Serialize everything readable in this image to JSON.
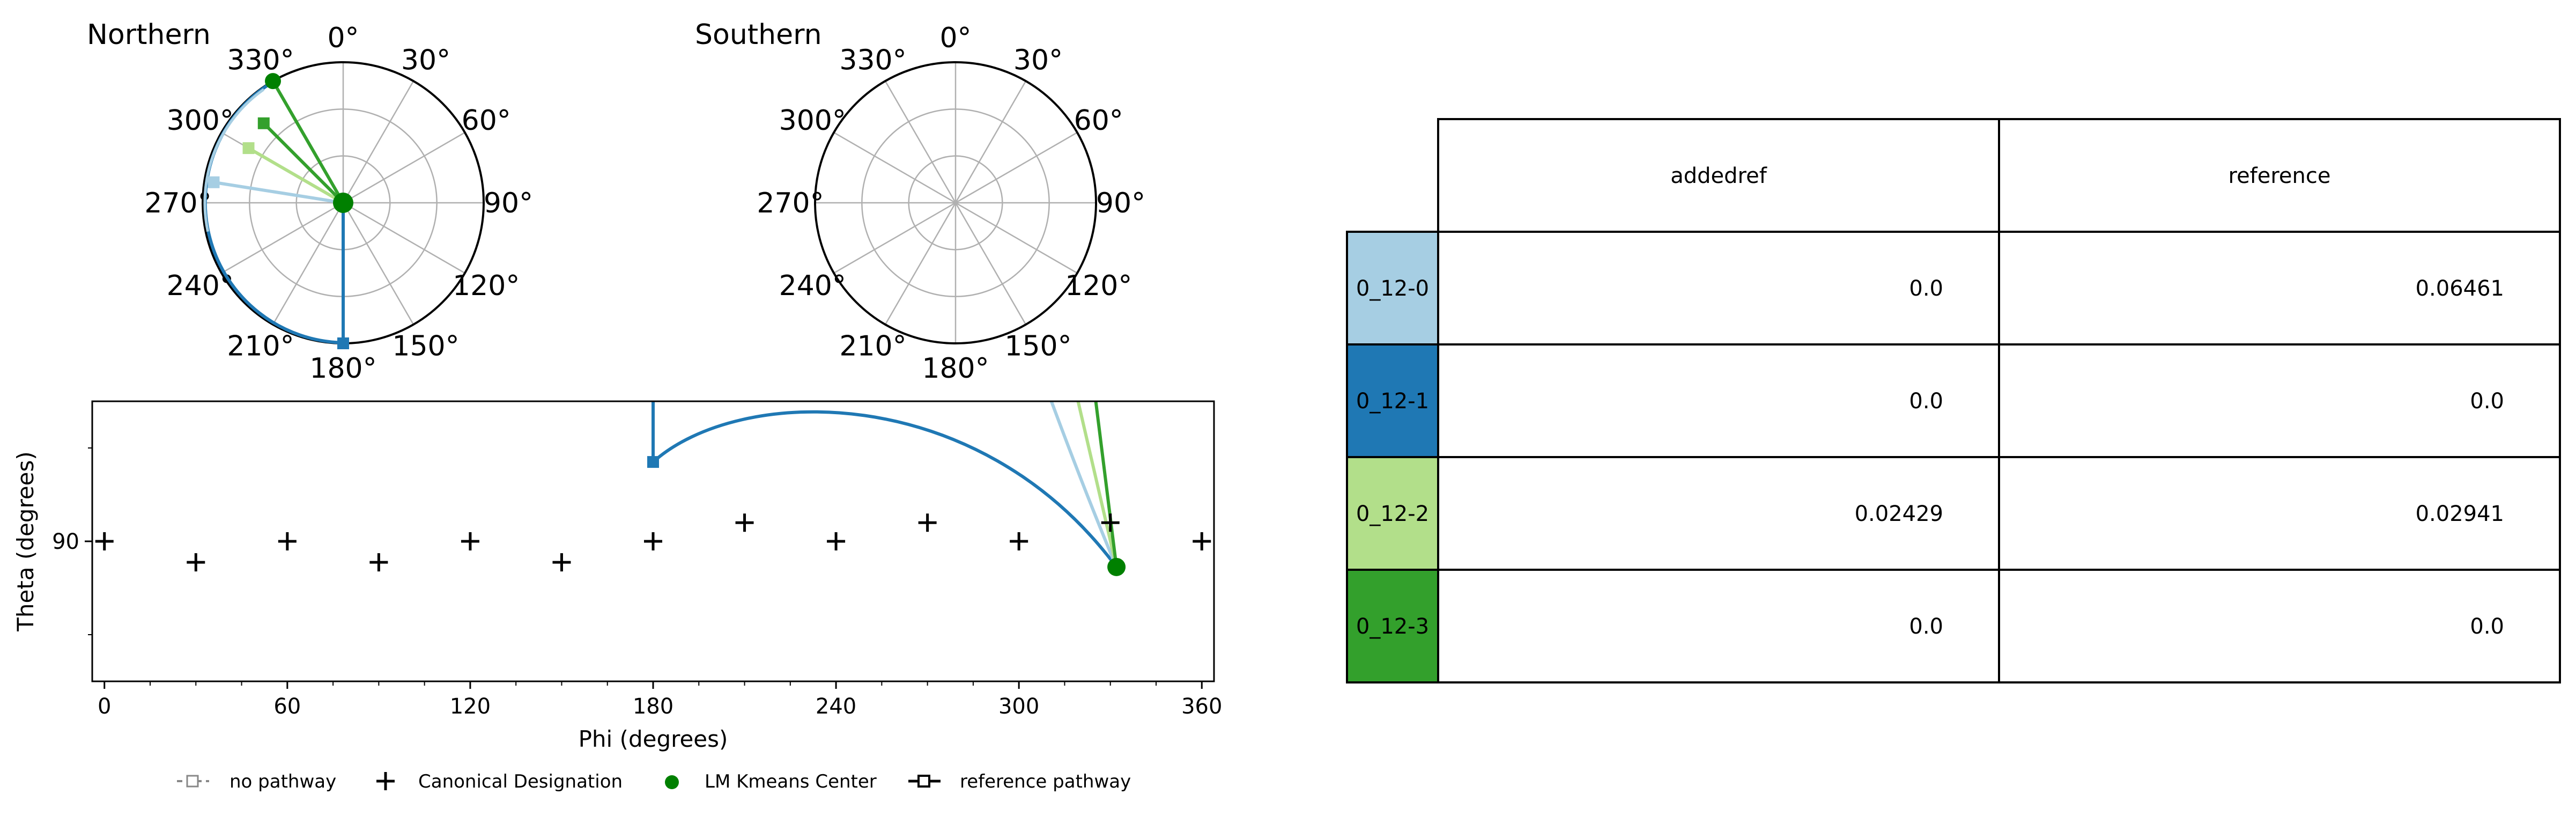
{
  "chart_data": [
    {
      "type": "scatter",
      "projection": "polar",
      "title": "Northern",
      "theta_ticks": [
        "0°",
        "30°",
        "60°",
        "90°",
        "120°",
        "150°",
        "180°",
        "210°",
        "240°",
        "270°",
        "300°",
        "330°"
      ],
      "theta_tick_values": [
        0,
        30,
        60,
        90,
        120,
        150,
        180,
        210,
        240,
        270,
        300,
        330
      ],
      "radial_max": 90,
      "radial_grid": [
        30,
        60,
        90
      ],
      "center_point": {
        "name": "LM Kmeans Center",
        "phi": 0,
        "theta": 0,
        "color": "#008000"
      },
      "pathways": [
        {
          "label": "0_12-0",
          "color": "#a6cee3",
          "phi": 279,
          "theta": 84
        },
        {
          "label": "0_12-1",
          "color": "#1f78b4",
          "phi": 180,
          "theta": 90
        },
        {
          "label": "0_12-2",
          "color": "#b2df8a",
          "phi": 300,
          "theta": 70
        },
        {
          "label": "0_12-3",
          "color": "#33a02c",
          "phi": 315,
          "theta": 72
        }
      ],
      "kmeans_point": {
        "phi": 330,
        "theta": 90
      }
    },
    {
      "type": "scatter",
      "projection": "polar",
      "title": "Southern",
      "theta_ticks": [
        "0°",
        "30°",
        "60°",
        "90°",
        "120°",
        "150°",
        "180°",
        "210°",
        "240°",
        "270°",
        "300°",
        "330°"
      ],
      "theta_tick_values": [
        0,
        30,
        60,
        90,
        120,
        150,
        180,
        210,
        240,
        270,
        300,
        330
      ],
      "radial_max": 90,
      "radial_grid": [
        30,
        60,
        90
      ]
    },
    {
      "type": "scatter",
      "xlabel": "Phi (degrees)",
      "ylabel": "Theta (degrees)",
      "xlim": [
        -4,
        364
      ],
      "ylim": [
        60,
        120
      ],
      "xticks": [
        0,
        60,
        120,
        180,
        240,
        300,
        360
      ],
      "xtick_labels": [
        "0",
        "60",
        "120",
        "180",
        "240",
        "300",
        "360"
      ],
      "yticks": [
        90
      ],
      "ytick_labels": [
        "90"
      ],
      "canonical_designation": [
        {
          "x": 0,
          "y": 90
        },
        {
          "x": 30,
          "y": 85.5
        },
        {
          "x": 60,
          "y": 90
        },
        {
          "x": 90,
          "y": 85.5
        },
        {
          "x": 120,
          "y": 90
        },
        {
          "x": 150,
          "y": 85.5
        },
        {
          "x": 180,
          "y": 90
        },
        {
          "x": 210,
          "y": 94
        },
        {
          "x": 240,
          "y": 90
        },
        {
          "x": 270,
          "y": 94
        },
        {
          "x": 300,
          "y": 90
        },
        {
          "x": 330,
          "y": 94
        },
        {
          "x": 360,
          "y": 90
        }
      ],
      "kmeans_center": {
        "x": 332,
        "y": 84.5
      },
      "reference_marker": {
        "x": 180,
        "y": 107
      },
      "legend": {
        "placement": "bottom",
        "entries": [
          "no pathway",
          "Canonical Designation",
          "LM Kmeans Center",
          "reference pathway"
        ]
      }
    },
    {
      "type": "table",
      "columns": [
        "addedref",
        "reference"
      ],
      "rows": [
        {
          "label": "0_12-0",
          "color": "#a6cee3",
          "values": [
            "0.0",
            "0.06461"
          ]
        },
        {
          "label": "0_12-1",
          "color": "#1f78b4",
          "values": [
            "0.0",
            "0.0"
          ]
        },
        {
          "label": "0_12-2",
          "color": "#b2df8a",
          "values": [
            "0.02429",
            "0.02941"
          ]
        },
        {
          "label": "0_12-3",
          "color": "#33a02c",
          "values": [
            "0.0",
            "0.0"
          ]
        }
      ]
    }
  ]
}
